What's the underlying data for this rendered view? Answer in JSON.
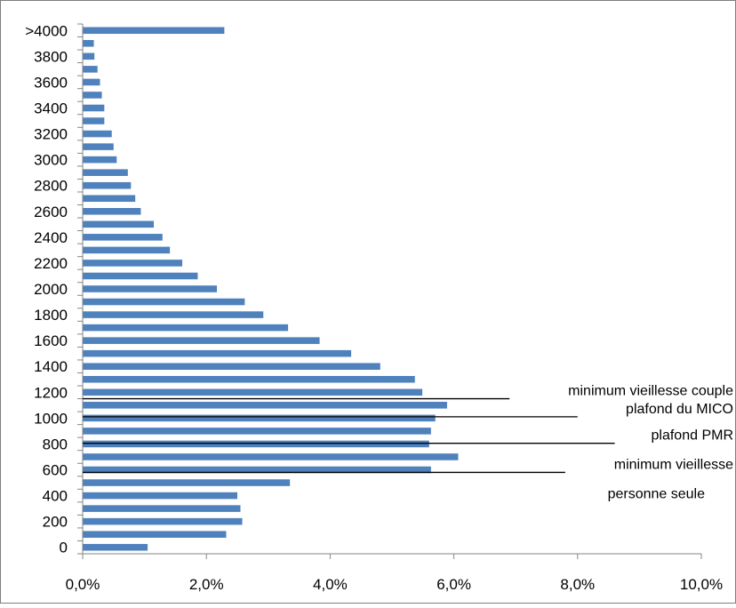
{
  "chart_data": {
    "type": "bar",
    "orientation": "horizontal",
    "title": "",
    "xlabel": "",
    "ylabel": "",
    "categories": [
      "0",
      "100",
      "200",
      "300",
      "400",
      "500",
      "600",
      "700",
      "800",
      "900",
      "1000",
      "1100",
      "1200",
      "1300",
      "1400",
      "1500",
      "1600",
      "1700",
      "1800",
      "1900",
      "2000",
      "2100",
      "2200",
      "2300",
      "2400",
      "2500",
      "2600",
      "2700",
      "2800",
      "2900",
      "3000",
      "3100",
      "3200",
      "3300",
      "3400",
      "3500",
      "3600",
      "3700",
      "3800",
      "3900",
      ">4000"
    ],
    "y_tick_labels": [
      {
        "label": "0",
        "index": 0
      },
      {
        "label": "200",
        "index": 2
      },
      {
        "label": "400",
        "index": 4
      },
      {
        "label": "600",
        "index": 6
      },
      {
        "label": "800",
        "index": 8
      },
      {
        "label": "1000",
        "index": 10
      },
      {
        "label": "1200",
        "index": 12
      },
      {
        "label": "1400",
        "index": 14
      },
      {
        "label": "1600",
        "index": 16
      },
      {
        "label": "1800",
        "index": 18
      },
      {
        "label": "2000",
        "index": 20
      },
      {
        "label": "2200",
        "index": 22
      },
      {
        "label": "2400",
        "index": 24
      },
      {
        "label": "2600",
        "index": 26
      },
      {
        "label": "2800",
        "index": 28
      },
      {
        "label": "3000",
        "index": 30
      },
      {
        "label": "3200",
        "index": 32
      },
      {
        "label": "3400",
        "index": 34
      },
      {
        "label": "3600",
        "index": 36
      },
      {
        "label": "3800",
        "index": 38
      },
      {
        "label": ">4000",
        "index": 40
      }
    ],
    "values": [
      1.05,
      2.32,
      2.58,
      2.55,
      2.5,
      3.35,
      5.63,
      6.07,
      5.6,
      5.63,
      5.7,
      5.89,
      5.49,
      5.37,
      4.81,
      4.34,
      3.83,
      3.32,
      2.92,
      2.62,
      2.17,
      1.86,
      1.61,
      1.41,
      1.29,
      1.15,
      0.94,
      0.85,
      0.78,
      0.73,
      0.55,
      0.5,
      0.47,
      0.35,
      0.35,
      0.31,
      0.28,
      0.24,
      0.19,
      0.18,
      2.29
    ],
    "xlim": [
      0,
      10
    ],
    "x_ticks": [
      0,
      2,
      4,
      6,
      8,
      10
    ],
    "x_tick_labels": [
      "0,0%",
      "2,0%",
      "4,0%",
      "6,0%",
      "8,0%",
      "10,0%"
    ],
    "bar_color": "#4F81BD",
    "grid": false,
    "legend": "none",
    "annotations": [
      {
        "text": "minimum vieillesse couple",
        "y": 1200,
        "line_end_x": 6.9
      },
      {
        "text": "plafond du MICO",
        "y": 1060,
        "line_end_x": 8.0
      },
      {
        "text": "plafond PMR",
        "y": 855,
        "line_end_x": 8.6
      },
      {
        "text": "minimum vieillesse",
        "text_line2": "personne seule",
        "y": 630,
        "line_end_x": 7.8
      }
    ]
  }
}
